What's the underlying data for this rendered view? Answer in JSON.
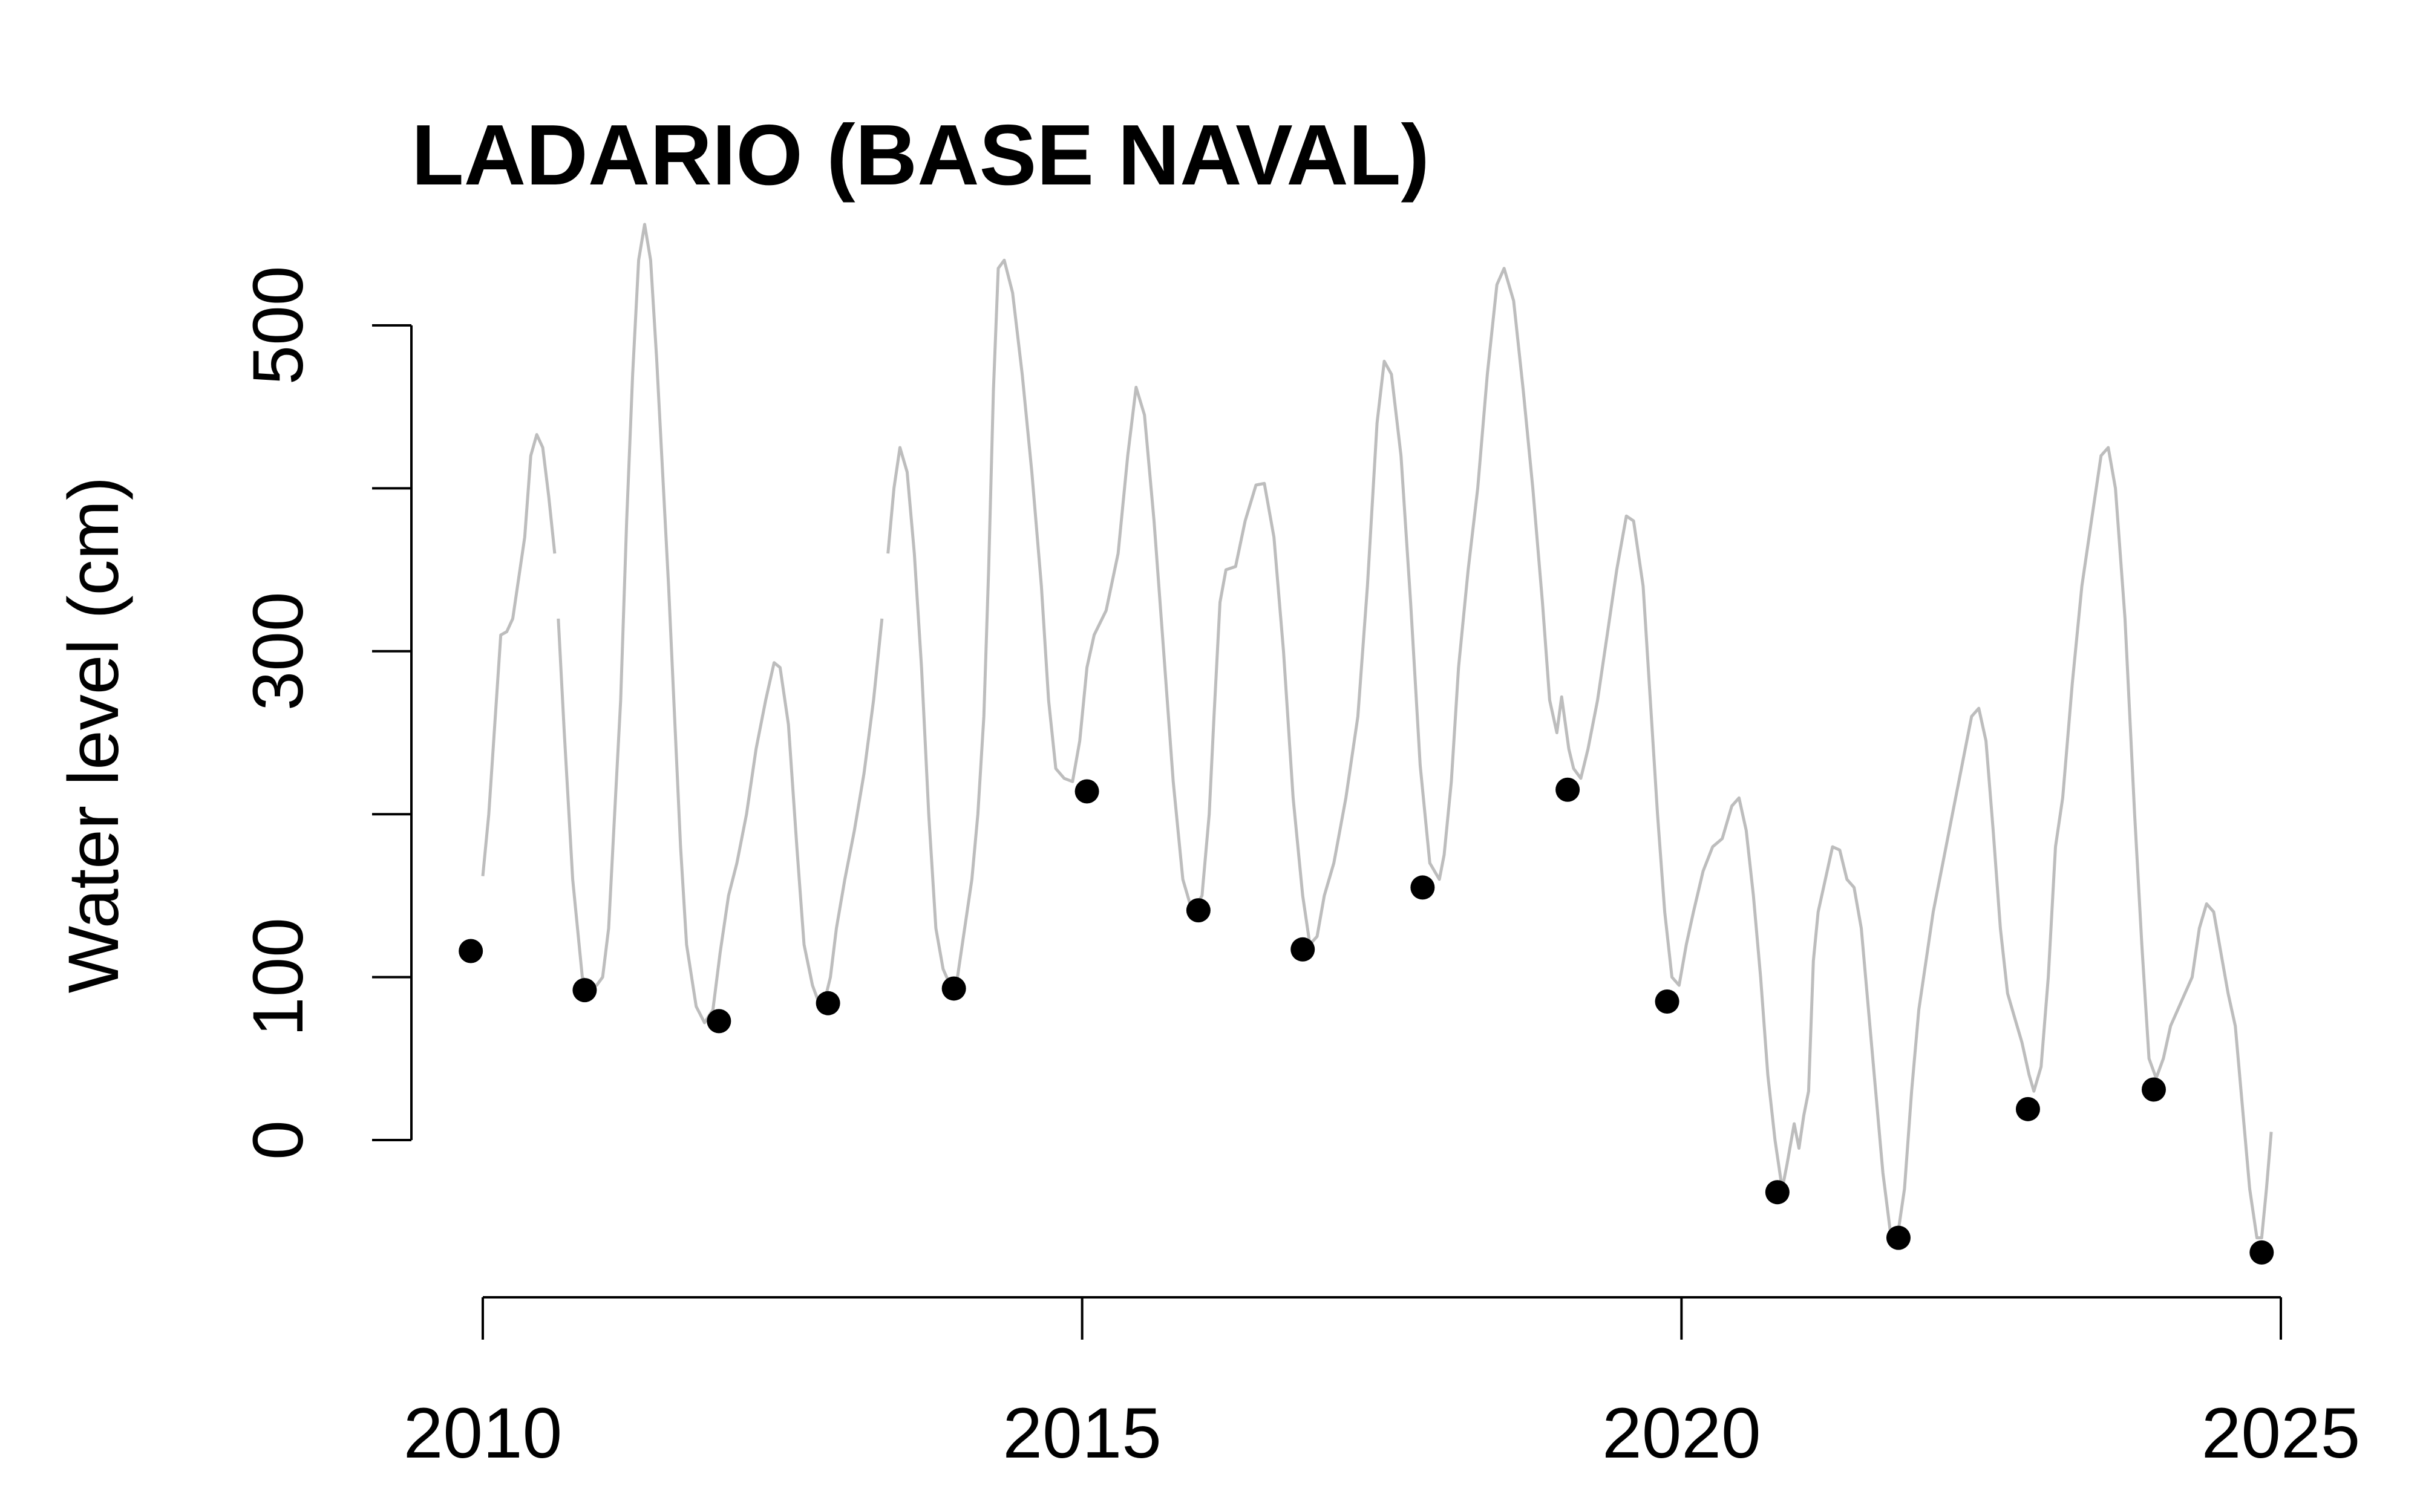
{
  "chart_data": {
    "type": "line",
    "title": "LADARIO (BASE NAVAL)",
    "xlabel": "",
    "ylabel": "Water level (cm)",
    "xlim": [
      2009.7,
      2025.1
    ],
    "ylim": [
      -80,
      570
    ],
    "x_ticks": [
      2010,
      2015,
      2020,
      2025
    ],
    "y_ticks": [
      0,
      100,
      200,
      300,
      400,
      500
    ],
    "y_tick_labels": [
      {
        "value": 0,
        "label": "0"
      },
      {
        "value": 100,
        "label": "100"
      },
      {
        "value": 300,
        "label": "300"
      },
      {
        "value": 500,
        "label": "500"
      }
    ],
    "grid": false,
    "series": [
      {
        "kind": "line",
        "color": "#bdbdbd",
        "segments": [
          [
            [
              2010.0,
              162
            ],
            [
              2010.05,
              200
            ],
            [
              2010.1,
              255
            ],
            [
              2010.15,
              310
            ],
            [
              2010.2,
              312
            ],
            [
              2010.25,
              320
            ],
            [
              2010.3,
              345
            ],
            [
              2010.35,
              370
            ],
            [
              2010.4,
              420
            ],
            [
              2010.45,
              433
            ],
            [
              2010.5,
              425
            ],
            [
              2010.55,
              395
            ],
            [
              2010.6,
              360
            ]
          ],
          [
            [
              2010.63,
              320
            ],
            [
              2010.68,
              250
            ],
            [
              2010.75,
              160
            ],
            [
              2010.83,
              100
            ],
            [
              2010.88,
              95
            ],
            [
              2010.95,
              95
            ],
            [
              2011.0,
              100
            ],
            [
              2011.05,
              130
            ],
            [
              2011.1,
              200
            ],
            [
              2011.15,
              270
            ],
            [
              2011.2,
              380
            ],
            [
              2011.25,
              470
            ],
            [
              2011.3,
              540
            ],
            [
              2011.35,
              562
            ],
            [
              2011.4,
              540
            ],
            [
              2011.45,
              480
            ],
            [
              2011.5,
              410
            ],
            [
              2011.55,
              340
            ],
            [
              2011.6,
              260
            ],
            [
              2011.65,
              180
            ],
            [
              2011.7,
              120
            ],
            [
              2011.78,
              82
            ],
            [
              2011.85,
              72
            ],
            [
              2011.92,
              80
            ],
            [
              2011.98,
              115
            ],
            [
              2012.05,
              150
            ],
            [
              2012.12,
              170
            ],
            [
              2012.2,
              200
            ],
            [
              2012.28,
              240
            ],
            [
              2012.36,
              270
            ],
            [
              2012.43,
              293
            ],
            [
              2012.48,
              290
            ],
            [
              2012.55,
              255
            ],
            [
              2012.62,
              180
            ],
            [
              2012.68,
              120
            ],
            [
              2012.75,
              95
            ],
            [
              2012.8,
              85
            ],
            [
              2012.85,
              85
            ],
            [
              2012.9,
              100
            ],
            [
              2012.95,
              130
            ],
            [
              2013.02,
              160
            ],
            [
              2013.1,
              190
            ],
            [
              2013.18,
              225
            ],
            [
              2013.26,
              270
            ],
            [
              2013.33,
              320
            ]
          ],
          [
            [
              2013.38,
              360
            ],
            [
              2013.43,
              400
            ],
            [
              2013.48,
              425
            ],
            [
              2013.54,
              410
            ],
            [
              2013.6,
              360
            ],
            [
              2013.66,
              290
            ],
            [
              2013.72,
              200
            ],
            [
              2013.78,
              130
            ],
            [
              2013.84,
              105
            ],
            [
              2013.9,
              95
            ],
            [
              2013.96,
              100
            ],
            [
              2014.02,
              130
            ],
            [
              2014.08,
              160
            ],
            [
              2014.13,
              200
            ],
            [
              2014.18,
              260
            ],
            [
              2014.22,
              350
            ],
            [
              2014.26,
              460
            ],
            [
              2014.3,
              535
            ],
            [
              2014.35,
              540
            ],
            [
              2014.42,
              520
            ],
            [
              2014.5,
              470
            ],
            [
              2014.58,
              410
            ],
            [
              2014.66,
              340
            ],
            [
              2014.72,
              270
            ],
            [
              2014.78,
              228
            ],
            [
              2014.85,
              222
            ],
            [
              2014.92,
              220
            ],
            [
              2014.98,
              245
            ],
            [
              2015.04,
              290
            ],
            [
              2015.1,
              310
            ],
            [
              2015.2,
              325
            ],
            [
              2015.3,
              360
            ],
            [
              2015.38,
              420
            ],
            [
              2015.45,
              462
            ],
            [
              2015.52,
              445
            ],
            [
              2015.6,
              380
            ],
            [
              2015.68,
              300
            ],
            [
              2015.76,
              220
            ],
            [
              2015.84,
              160
            ],
            [
              2015.92,
              140
            ],
            [
              2016.0,
              150
            ],
            [
              2016.06,
              200
            ],
            [
              2016.1,
              260
            ],
            [
              2016.15,
              330
            ],
            [
              2016.2,
              350
            ],
            [
              2016.28,
              352
            ],
            [
              2016.36,
              380
            ],
            [
              2016.45,
              402
            ],
            [
              2016.52,
              403
            ],
            [
              2016.6,
              370
            ],
            [
              2016.68,
              300
            ],
            [
              2016.76,
              210
            ],
            [
              2016.84,
              150
            ],
            [
              2016.9,
              120
            ],
            [
              2016.96,
              125
            ],
            [
              2017.02,
              150
            ],
            [
              2017.1,
              170
            ],
            [
              2017.2,
              210
            ],
            [
              2017.3,
              260
            ],
            [
              2017.38,
              340
            ],
            [
              2017.46,
              440
            ],
            [
              2017.52,
              478
            ],
            [
              2017.58,
              470
            ],
            [
              2017.66,
              420
            ],
            [
              2017.74,
              330
            ],
            [
              2017.82,
              230
            ],
            [
              2017.9,
              170
            ],
            [
              2017.98,
              160
            ],
            [
              2018.02,
              175
            ],
            [
              2018.08,
              220
            ],
            [
              2018.14,
              290
            ],
            [
              2018.22,
              350
            ],
            [
              2018.3,
              400
            ],
            [
              2018.38,
              470
            ],
            [
              2018.46,
              525
            ],
            [
              2018.52,
              535
            ],
            [
              2018.6,
              515
            ],
            [
              2018.68,
              460
            ],
            [
              2018.76,
              400
            ],
            [
              2018.84,
              330
            ],
            [
              2018.9,
              270
            ],
            [
              2018.96,
              250
            ],
            [
              2019.0,
              272
            ],
            [
              2019.06,
              240
            ],
            [
              2019.1,
              228
            ],
            [
              2019.16,
              222
            ],
            [
              2019.22,
              240
            ],
            [
              2019.3,
              270
            ],
            [
              2019.38,
              310
            ],
            [
              2019.46,
              350
            ],
            [
              2019.54,
              383
            ],
            [
              2019.6,
              380
            ],
            [
              2019.68,
              340
            ],
            [
              2019.74,
              270
            ],
            [
              2019.8,
              200
            ],
            [
              2019.86,
              140
            ],
            [
              2019.92,
              100
            ],
            [
              2019.98,
              95
            ],
            [
              2020.04,
              120
            ],
            [
              2020.1,
              140
            ],
            [
              2020.18,
              165
            ],
            [
              2020.26,
              180
            ],
            [
              2020.34,
              185
            ],
            [
              2020.42,
              205
            ],
            [
              2020.48,
              210
            ],
            [
              2020.54,
              190
            ],
            [
              2020.6,
              150
            ],
            [
              2020.66,
              100
            ],
            [
              2020.72,
              40
            ],
            [
              2020.78,
              0
            ],
            [
              2020.84,
              -30
            ],
            [
              2020.88,
              -15
            ],
            [
              2020.94,
              10
            ],
            [
              2020.98,
              -5
            ],
            [
              2021.02,
              15
            ],
            [
              2021.06,
              30
            ],
            [
              2021.1,
              110
            ],
            [
              2021.14,
              140
            ],
            [
              2021.2,
              160
            ],
            [
              2021.26,
              180
            ],
            [
              2021.32,
              178
            ],
            [
              2021.38,
              160
            ],
            [
              2021.44,
              155
            ],
            [
              2021.5,
              130
            ],
            [
              2021.56,
              80
            ],
            [
              2021.62,
              30
            ],
            [
              2021.68,
              -20
            ],
            [
              2021.74,
              -55
            ],
            [
              2021.8,
              -60
            ],
            [
              2021.86,
              -30
            ],
            [
              2021.92,
              30
            ],
            [
              2021.98,
              80
            ],
            [
              2022.04,
              110
            ],
            [
              2022.1,
              140
            ],
            [
              2022.18,
              170
            ],
            [
              2022.26,
              200
            ],
            [
              2022.34,
              230
            ],
            [
              2022.42,
              260
            ],
            [
              2022.48,
              265
            ],
            [
              2022.54,
              245
            ],
            [
              2022.6,
              190
            ],
            [
              2022.66,
              130
            ],
            [
              2022.72,
              90
            ],
            [
              2022.78,
              75
            ],
            [
              2022.84,
              60
            ],
            [
              2022.9,
              40
            ],
            [
              2022.94,
              30
            ],
            [
              2023.0,
              45
            ],
            [
              2023.06,
              100
            ],
            [
              2023.12,
              180
            ],
            [
              2023.18,
              210
            ],
            [
              2023.26,
              280
            ],
            [
              2023.34,
              340
            ],
            [
              2023.42,
              380
            ],
            [
              2023.5,
              420
            ],
            [
              2023.56,
              425
            ],
            [
              2023.62,
              400
            ],
            [
              2023.7,
              320
            ],
            [
              2023.78,
              200
            ],
            [
              2023.84,
              120
            ],
            [
              2023.9,
              50
            ],
            [
              2023.96,
              38
            ],
            [
              2024.02,
              50
            ],
            [
              2024.08,
              70
            ],
            [
              2024.14,
              80
            ],
            [
              2024.2,
              90
            ],
            [
              2024.26,
              100
            ],
            [
              2024.32,
              130
            ],
            [
              2024.38,
              145
            ],
            [
              2024.44,
              140
            ],
            [
              2024.5,
              115
            ],
            [
              2024.56,
              90
            ],
            [
              2024.62,
              70
            ],
            [
              2024.68,
              20
            ],
            [
              2024.74,
              -30
            ],
            [
              2024.8,
              -60
            ],
            [
              2024.84,
              -60
            ],
            [
              2024.88,
              -30
            ],
            [
              2024.92,
              5
            ]
          ]
        ]
      },
      {
        "kind": "points",
        "color": "#000000",
        "x": [
          2009.9,
          2010.85,
          2011.97,
          2012.88,
          2013.93,
          2015.04,
          2015.97,
          2016.84,
          2017.84,
          2019.05,
          2019.88,
          2020.8,
          2021.81,
          2022.89,
          2023.94,
          2024.84
        ],
        "y": [
          116,
          92,
          73,
          84,
          93,
          214,
          141,
          117,
          155,
          215,
          85,
          -32,
          -60,
          19,
          31,
          -69
        ]
      }
    ]
  }
}
